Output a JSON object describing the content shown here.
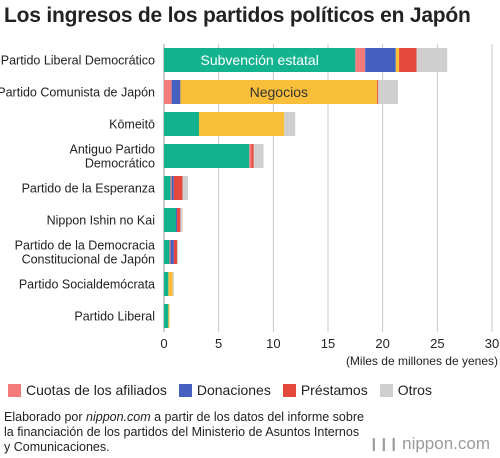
{
  "chart_data": {
    "type": "bar",
    "orientation": "horizontal",
    "stacked": true,
    "title": "Los ingresos de los partidos políticos en Japón",
    "xlabel": "(Miles de millones de yenes)",
    "xlim": [
      0,
      30
    ],
    "xticks": [
      0,
      5,
      10,
      15,
      20,
      25,
      30
    ],
    "grid": true,
    "legend_position": "bottom",
    "categories": [
      [
        "Partido Liberal Democrático"
      ],
      [
        "Partido Comunista de Japón"
      ],
      [
        "Kōmeitō"
      ],
      [
        "Antiguo Partido",
        "Democrático"
      ],
      [
        "Partido de la Esperanza"
      ],
      [
        "Nippon Ishin no Kai"
      ],
      [
        "Partido de la Democracia",
        "Constitucional de Japón"
      ],
      [
        "Partido Socialdemócrata"
      ],
      [
        "Partido Liberal"
      ]
    ],
    "series": [
      {
        "name": "Subvención estatal",
        "color": "#13b38f",
        "values": [
          17.5,
          0.0,
          3.2,
          7.8,
          0.6,
          1.1,
          0.5,
          0.4,
          0.4
        ]
      },
      {
        "name": "Cuotas de los afiliados",
        "color": "#f47b7b",
        "values": [
          0.9,
          0.7,
          0.0,
          0.2,
          0.1,
          0.0,
          0.1,
          0.0,
          0.0
        ]
      },
      {
        "name": "Donaciones",
        "color": "#4560bf",
        "values": [
          2.8,
          0.8,
          0.0,
          0.0,
          0.2,
          0.1,
          0.3,
          0.0,
          0.0
        ]
      },
      {
        "name": "Negocios",
        "color": "#f9bf3b",
        "values": [
          0.3,
          18.0,
          7.8,
          0.0,
          0.0,
          0.0,
          0.0,
          0.4,
          0.1
        ]
      },
      {
        "name": "Préstamos",
        "color": "#e4473b",
        "values": [
          1.6,
          0.1,
          0.0,
          0.2,
          0.8,
          0.3,
          0.3,
          0.0,
          0.0
        ]
      },
      {
        "name": "Otros",
        "color": "#cfcfcf",
        "values": [
          2.8,
          1.8,
          1.0,
          0.9,
          0.5,
          0.2,
          0.1,
          0.1,
          0.0
        ]
      }
    ],
    "bar_labels": [
      {
        "series": "Subvención estatal",
        "category_index": 0,
        "text": "Subvención estatal",
        "color": "#ffffff"
      },
      {
        "series": "Negocios",
        "category_index": 1,
        "text": "Negocios",
        "color": "#333333"
      }
    ],
    "legend_entries": [
      "Cuotas de los afiliados",
      "Donaciones",
      "Préstamos",
      "Otros"
    ]
  },
  "source": {
    "prefix": "Elaborado por ",
    "site": "nippon.com",
    "rest": " a partir de los datos del informe sobre la financiación de los partidos del Ministerio de Asuntos Internos y Comunicaciones."
  },
  "logo": {
    "mark": "❙❙❙",
    "text": "nippon.com"
  }
}
